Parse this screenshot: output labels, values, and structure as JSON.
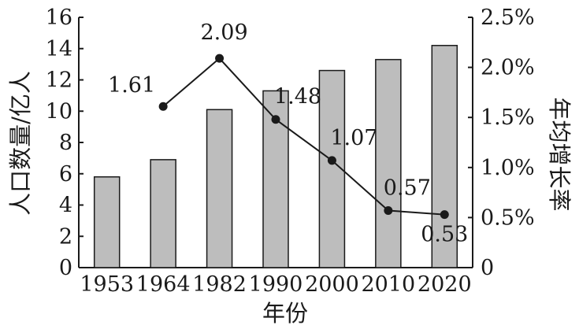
{
  "chart_data": {
    "type": "bar",
    "categories": [
      "1953",
      "1964",
      "1982",
      "1990",
      "2000",
      "2010",
      "2020"
    ],
    "series": [
      {
        "type": "bar",
        "axis": "left",
        "values": [
          5.8,
          6.9,
          10.1,
          11.3,
          12.6,
          13.3,
          14.2
        ]
      },
      {
        "type": "line",
        "axis": "right",
        "values": [
          null,
          1.61,
          2.09,
          1.48,
          1.07,
          0.57,
          0.53
        ],
        "labels": [
          "",
          "1.61",
          "2.09",
          "1.48",
          "1.07",
          "0.57",
          "0.53"
        ]
      }
    ],
    "ylabel": "人口数量/亿人",
    "y2label": "年均增长率",
    "xlabel": "年份",
    "ylim": [
      0,
      16
    ],
    "y2lim": [
      0,
      2.5
    ],
    "yticks": [
      "0",
      "2",
      "4",
      "6",
      "8",
      "10",
      "12",
      "14",
      "16"
    ],
    "y2ticks": [
      "0",
      "0.5%",
      "1.0%",
      "1.5%",
      "2.0%",
      "2.5%"
    ],
    "grid": false
  }
}
